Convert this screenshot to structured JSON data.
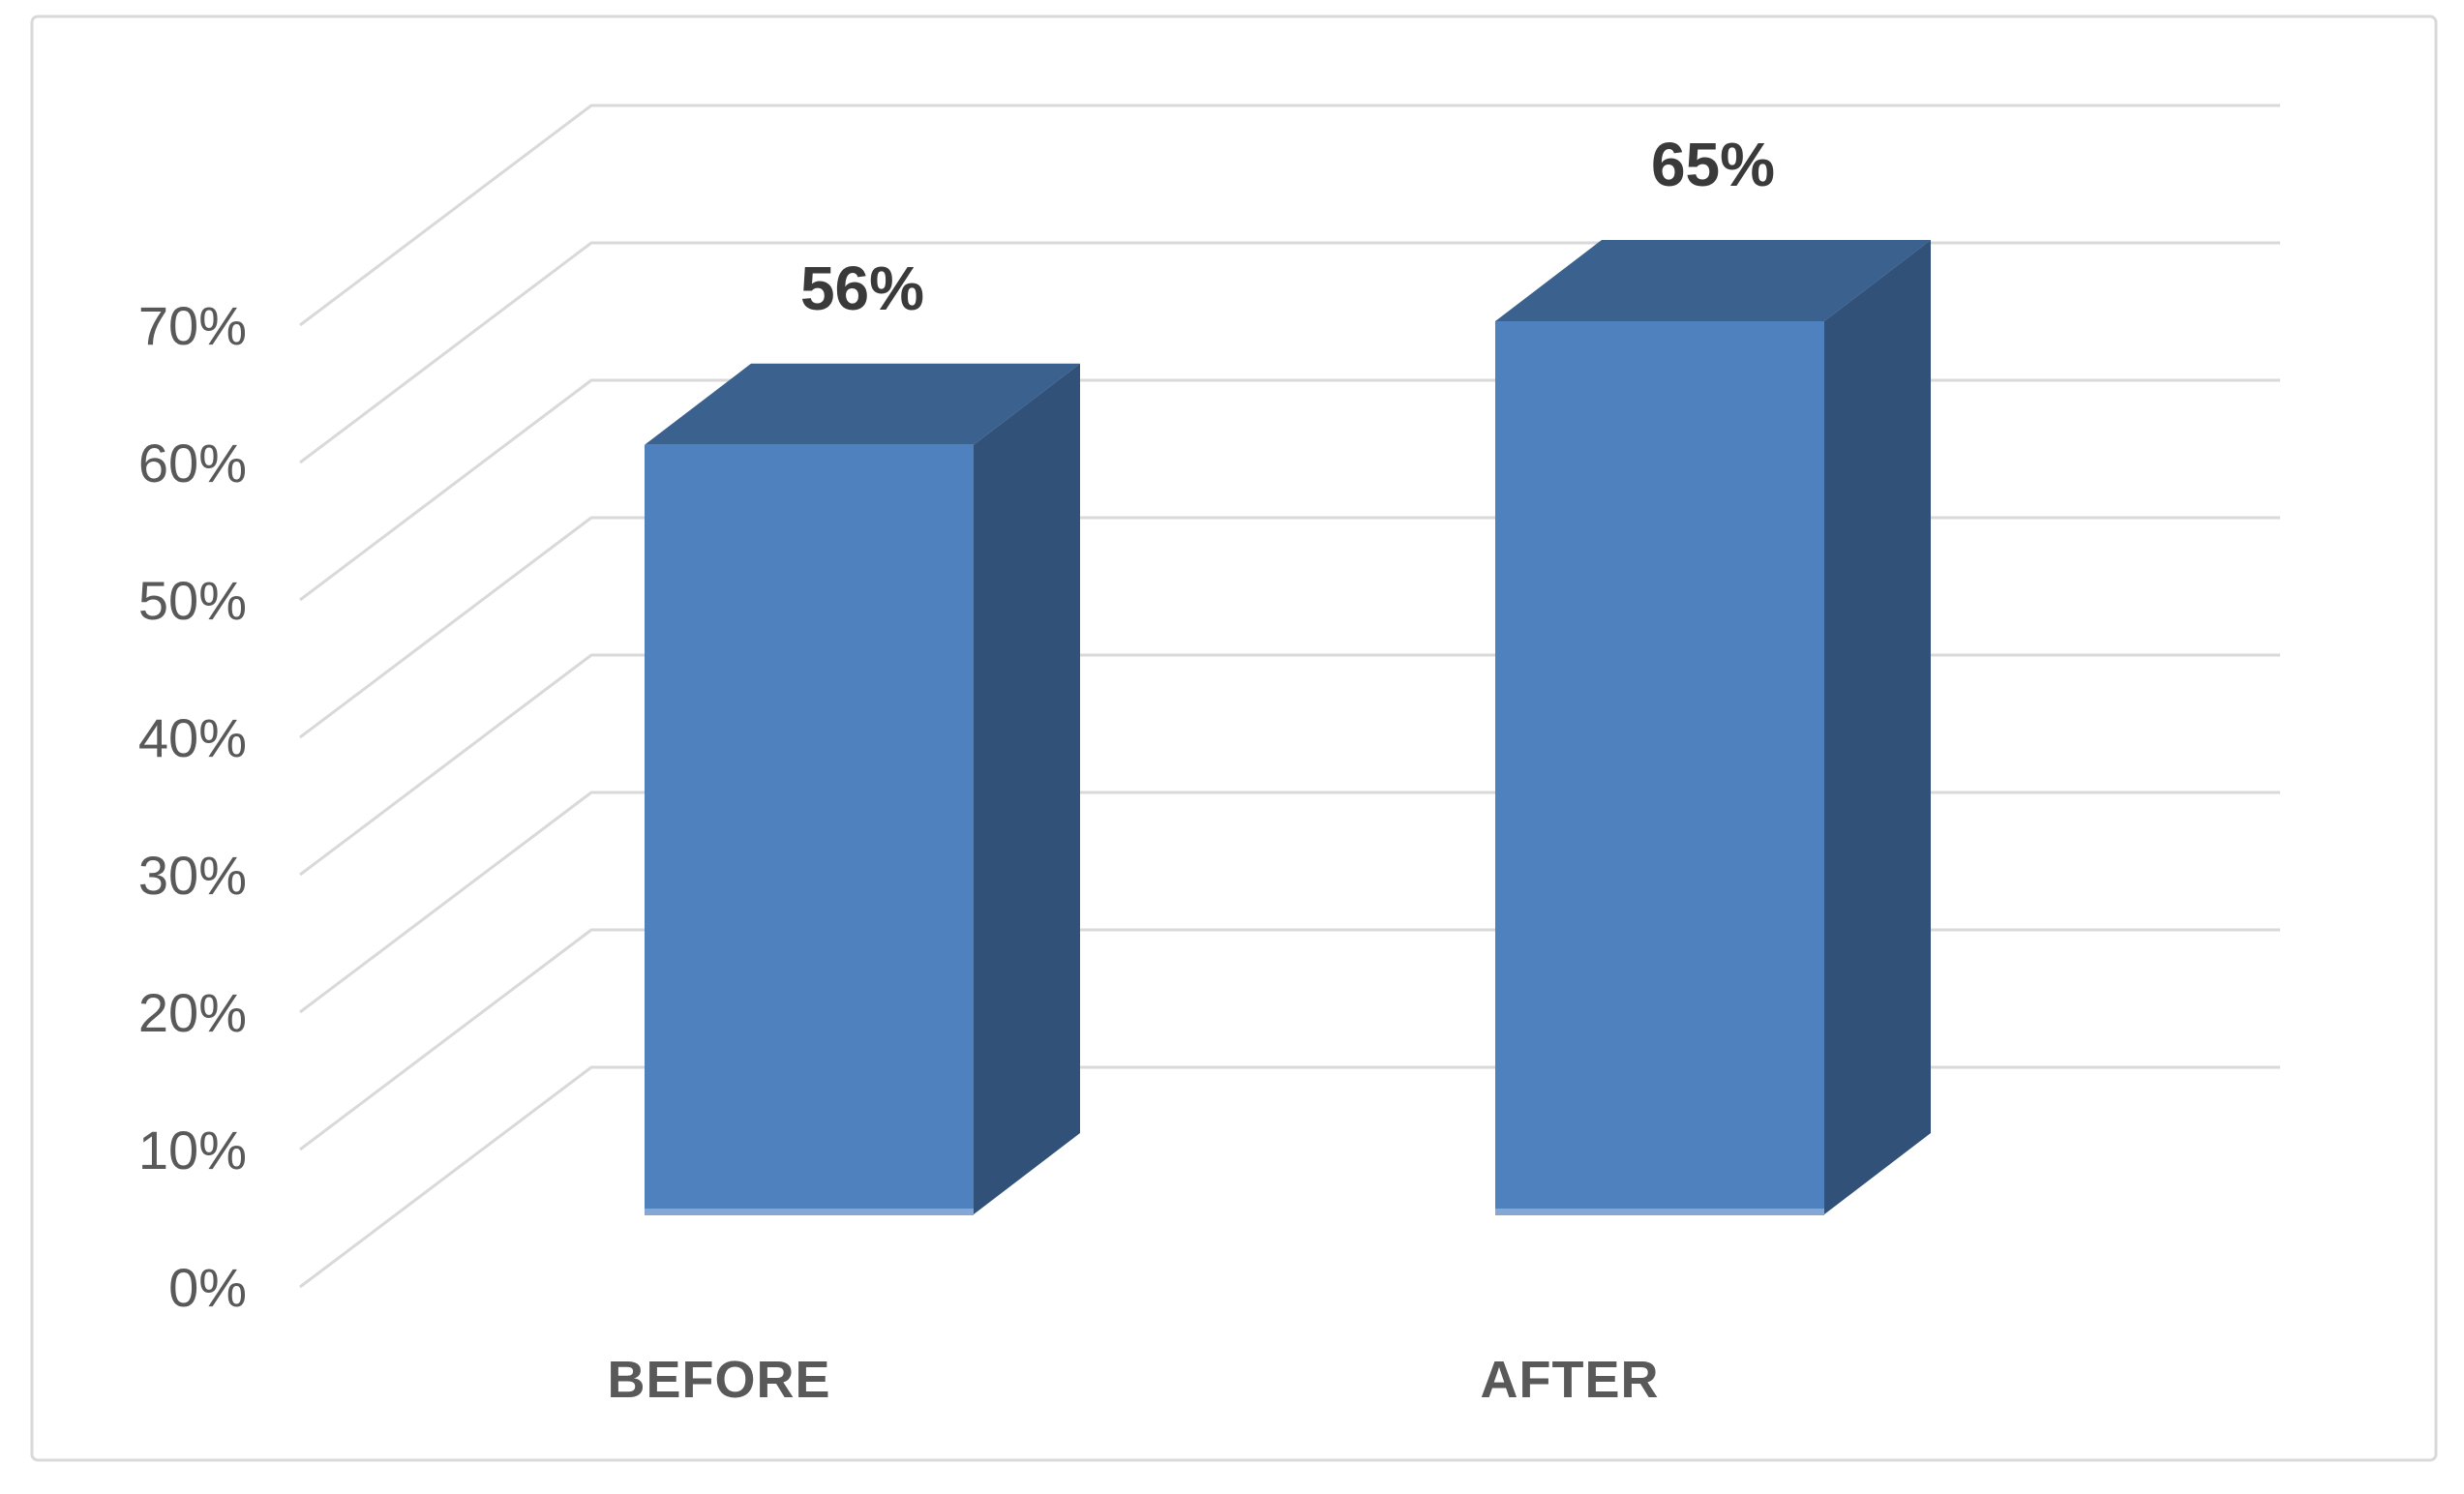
{
  "chart_data": {
    "type": "bar",
    "variant": "3d-column",
    "title": "",
    "categories": [
      "BEFORE",
      "AFTER"
    ],
    "values": [
      56,
      65
    ],
    "data_labels": [
      "56%",
      "65%"
    ],
    "y_axis": {
      "tick_labels": [
        "0%",
        "10%",
        "20%",
        "30%",
        "40%",
        "50%",
        "60%",
        "70%"
      ],
      "min": 0,
      "max": 70,
      "major_unit": 10
    },
    "ylim": [
      0,
      70
    ],
    "grid": true,
    "legend": "none",
    "colors": {
      "bar_front": "#4e81bd",
      "bar_top": "#3b618f",
      "bar_side": "#325179",
      "bar_bottom_highlight": "#84a7d4",
      "gridline": "#d9d9d9",
      "frame_border": "#d9d9d9",
      "axis_label": "#595959",
      "category_label": "#595959",
      "data_label": "#3a3a3a",
      "background": "#ffffff"
    }
  }
}
